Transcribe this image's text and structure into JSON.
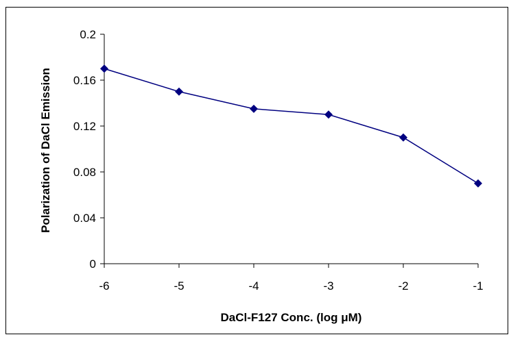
{
  "chart_data": {
    "type": "line",
    "title": "",
    "xlabel": "DaCl-F127 Conc. (log  μM)",
    "ylabel": "Polarization of DaCl Emission",
    "x": [
      -6,
      -5,
      -4,
      -3,
      -2,
      -1
    ],
    "series": [
      {
        "name": "",
        "values": [
          0.17,
          0.15,
          0.135,
          0.13,
          0.11,
          0.07
        ]
      }
    ],
    "xlim": [
      -6,
      -1
    ],
    "ylim": [
      0,
      0.2
    ],
    "x_ticks": [
      "-6",
      "-5",
      "-4",
      "-3",
      "-2",
      "-1"
    ],
    "y_ticks": [
      "0",
      "0.04",
      "0.08",
      "0.12",
      "0.16",
      "0.2"
    ],
    "grid": false,
    "legend": "none",
    "colors": {
      "series": "#000080",
      "axis": "#000000"
    }
  }
}
